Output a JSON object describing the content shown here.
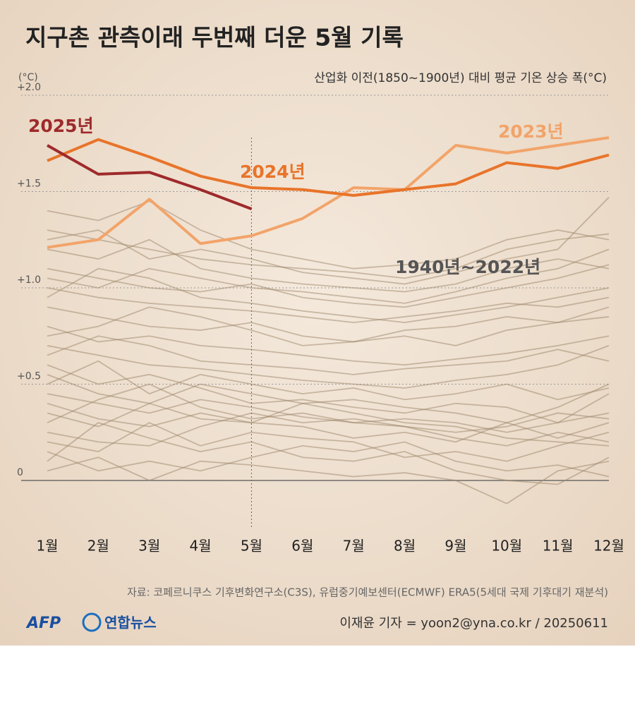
{
  "chart_data": {
    "type": "line",
    "title": "지구촌 관측이래 두번째 더운 5월 기록",
    "y_unit": "(°C)",
    "subtitle": "산업화 이전(1850~1900년) 대비 평균 기온 상승 폭(°C)",
    "categories": [
      "1월",
      "2월",
      "3월",
      "4월",
      "5월",
      "6월",
      "7월",
      "8월",
      "9월",
      "10월",
      "11월",
      "12월"
    ],
    "ylim": [
      -0.25,
      2.0
    ],
    "yticks": [
      {
        "value": 2.0,
        "label": "+2.0"
      },
      {
        "value": 1.5,
        "label": "+1.5"
      },
      {
        "value": 1.0,
        "label": "+1.0"
      },
      {
        "value": 0.5,
        "label": "+0.5"
      },
      0
    ],
    "grid": true,
    "series": [
      {
        "name": "2023년",
        "color": "#f2a46a",
        "values": [
          1.21,
          1.25,
          1.46,
          1.23,
          1.27,
          1.36,
          1.52,
          1.51,
          1.74,
          1.7,
          1.74,
          1.78
        ]
      },
      {
        "name": "2024년",
        "color": "#e8742a",
        "values": [
          1.66,
          1.77,
          1.68,
          1.58,
          1.52,
          1.51,
          1.48,
          1.51,
          1.54,
          1.65,
          1.62,
          1.69
        ]
      },
      {
        "name": "2025년",
        "color": "#9e2a2b",
        "values": [
          1.74,
          1.59,
          1.6,
          1.51,
          1.41,
          null,
          null,
          null,
          null,
          null,
          null,
          null
        ]
      }
    ],
    "background_label": "1940년~2022년",
    "background_color": "#9c8569",
    "background_series": [
      {
        "values": [
          0.05,
          0.12,
          0.0,
          0.1,
          0.08,
          0.05,
          0.02,
          0.04,
          0.0,
          -0.12,
          0.05,
          0.1
        ]
      },
      {
        "values": [
          0.2,
          0.15,
          0.3,
          0.18,
          0.25,
          0.22,
          0.2,
          0.12,
          0.15,
          0.1,
          0.18,
          0.25
        ]
      },
      {
        "values": [
          0.35,
          0.28,
          0.4,
          0.32,
          0.3,
          0.28,
          0.22,
          0.25,
          0.2,
          0.3,
          0.22,
          0.3
        ]
      },
      {
        "values": [
          0.1,
          0.3,
          0.22,
          0.15,
          0.2,
          0.12,
          0.1,
          0.15,
          0.05,
          0.0,
          -0.02,
          0.12
        ]
      },
      {
        "values": [
          0.45,
          0.4,
          0.35,
          0.42,
          0.38,
          0.33,
          0.3,
          0.28,
          0.25,
          0.28,
          0.35,
          0.32
        ]
      },
      {
        "values": [
          0.3,
          0.42,
          0.5,
          0.38,
          0.32,
          0.35,
          0.3,
          0.32,
          0.3,
          0.25,
          0.3,
          0.45
        ]
      },
      {
        "values": [
          0.6,
          0.5,
          0.55,
          0.48,
          0.4,
          0.42,
          0.38,
          0.35,
          0.4,
          0.38,
          0.3,
          0.35
        ]
      },
      {
        "values": [
          0.25,
          0.2,
          0.18,
          0.28,
          0.35,
          0.3,
          0.32,
          0.28,
          0.22,
          0.18,
          0.25,
          0.2
        ]
      },
      {
        "values": [
          0.5,
          0.62,
          0.45,
          0.55,
          0.5,
          0.45,
          0.48,
          0.42,
          0.45,
          0.5,
          0.42,
          0.48
        ]
      },
      {
        "values": [
          0.7,
          0.65,
          0.6,
          0.58,
          0.55,
          0.52,
          0.5,
          0.48,
          0.52,
          0.55,
          0.6,
          0.7
        ]
      },
      {
        "values": [
          0.4,
          0.32,
          0.28,
          0.35,
          0.3,
          0.4,
          0.35,
          0.3,
          0.28,
          0.22,
          0.2,
          0.18
        ]
      },
      {
        "values": [
          0.15,
          0.05,
          0.1,
          0.05,
          0.12,
          0.18,
          0.15,
          0.2,
          0.1,
          0.05,
          0.08,
          0.02
        ]
      },
      {
        "values": [
          0.8,
          0.72,
          0.75,
          0.7,
          0.68,
          0.65,
          0.62,
          0.6,
          0.63,
          0.66,
          0.7,
          0.75
        ]
      },
      {
        "values": [
          0.9,
          0.85,
          0.8,
          0.78,
          0.82,
          0.75,
          0.72,
          0.78,
          0.8,
          0.85,
          0.82,
          0.9
        ]
      },
      {
        "values": [
          0.65,
          0.75,
          0.7,
          0.62,
          0.6,
          0.58,
          0.55,
          0.58,
          0.6,
          0.62,
          0.68,
          0.62
        ]
      },
      {
        "values": [
          1.0,
          0.95,
          0.92,
          0.9,
          0.88,
          0.85,
          0.82,
          0.85,
          0.88,
          0.92,
          0.9,
          0.95
        ]
      },
      {
        "values": [
          1.1,
          1.05,
          1.0,
          0.98,
          1.02,
          0.95,
          0.92,
          0.9,
          0.95,
          1.0,
          1.05,
          1.12
        ]
      },
      {
        "values": [
          1.2,
          1.15,
          1.25,
          1.1,
          1.05,
          1.02,
          1.0,
          0.98,
          1.02,
          1.1,
          1.15,
          1.1
        ]
      },
      {
        "values": [
          0.95,
          1.1,
          1.05,
          0.95,
          0.92,
          0.88,
          0.85,
          0.82,
          0.86,
          0.9,
          0.95,
          1.0
        ]
      },
      {
        "values": [
          1.3,
          1.25,
          1.2,
          1.15,
          1.12,
          1.1,
          1.08,
          1.05,
          1.1,
          1.2,
          1.25,
          1.28
        ]
      },
      {
        "values": [
          1.4,
          1.35,
          1.45,
          1.3,
          1.2,
          1.15,
          1.1,
          1.12,
          1.15,
          1.25,
          1.3,
          1.25
        ]
      },
      {
        "values": [
          0.75,
          0.8,
          0.9,
          0.85,
          0.78,
          0.7,
          0.72,
          0.75,
          0.7,
          0.78,
          0.82,
          0.85
        ]
      },
      {
        "values": [
          1.05,
          1.0,
          1.1,
          1.05,
          1.0,
          0.98,
          0.95,
          0.92,
          0.98,
          1.05,
          1.1,
          1.2
        ]
      },
      {
        "values": [
          0.55,
          0.45,
          0.4,
          0.5,
          0.45,
          0.4,
          0.42,
          0.38,
          0.35,
          0.3,
          0.38,
          0.5
        ]
      },
      {
        "values": [
          1.25,
          1.3,
          1.15,
          1.2,
          1.15,
          1.08,
          1.05,
          1.02,
          1.08,
          1.15,
          1.2,
          1.47
        ]
      }
    ],
    "source": "자료: 코페르니쿠스 기후변화연구소(C3S), 유럽중기예보센터(ECMWF) ERA5(5세대 국제 기후대기 재분석)",
    "logo_afp": "AFP",
    "logo_yonhap": "연합뉴스",
    "credit": "이재윤 기자 = yoon2@yna.co.kr / 20250611"
  }
}
